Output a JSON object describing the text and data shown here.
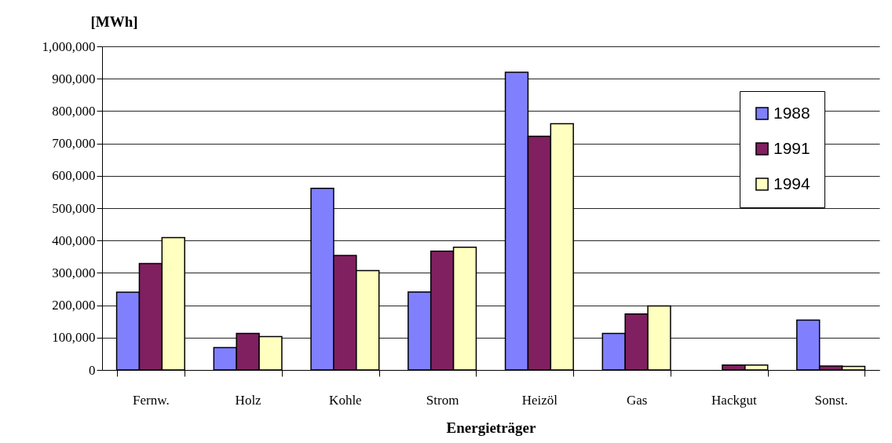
{
  "chart_data": {
    "type": "bar",
    "xlabel": "Energieträger",
    "ylabel": "[MWh]",
    "categories": [
      "Fernw.",
      "Holz",
      "Kohle",
      "Strom",
      "Heizöl",
      "Gas",
      "Hackgut",
      "Sonst."
    ],
    "series": [
      {
        "name": "1988",
        "color": "#8080ff",
        "values": [
          240000,
          69000,
          561000,
          241000,
          920000,
          113000,
          null,
          154000
        ]
      },
      {
        "name": "1991",
        "color": "#802060",
        "values": [
          329000,
          113000,
          354000,
          367000,
          722000,
          173000,
          15000,
          12000
        ]
      },
      {
        "name": "1994",
        "color": "#ffffc0",
        "values": [
          409000,
          103000,
          307000,
          379000,
          761000,
          198000,
          15000,
          11000
        ]
      }
    ],
    "ylim": [
      0,
      1000000
    ],
    "yticks": [
      0,
      {
        "value": 100000,
        "label": "100,000"
      },
      {
        "value": 200000,
        "label": "200,000"
      },
      {
        "value": 300000,
        "label": "300,000"
      },
      {
        "value": 400000,
        "label": "400,000"
      },
      {
        "value": 500000,
        "label": "500,000"
      },
      {
        "value": 600000,
        "label": "600,000"
      },
      {
        "value": 700000,
        "label": "700,000"
      },
      {
        "value": 800000,
        "label": "800,000"
      },
      {
        "value": 900000,
        "label": "900,000"
      },
      {
        "value": 1000000,
        "label": "1,000,000"
      }
    ],
    "grid": "y",
    "legend": "top right"
  }
}
